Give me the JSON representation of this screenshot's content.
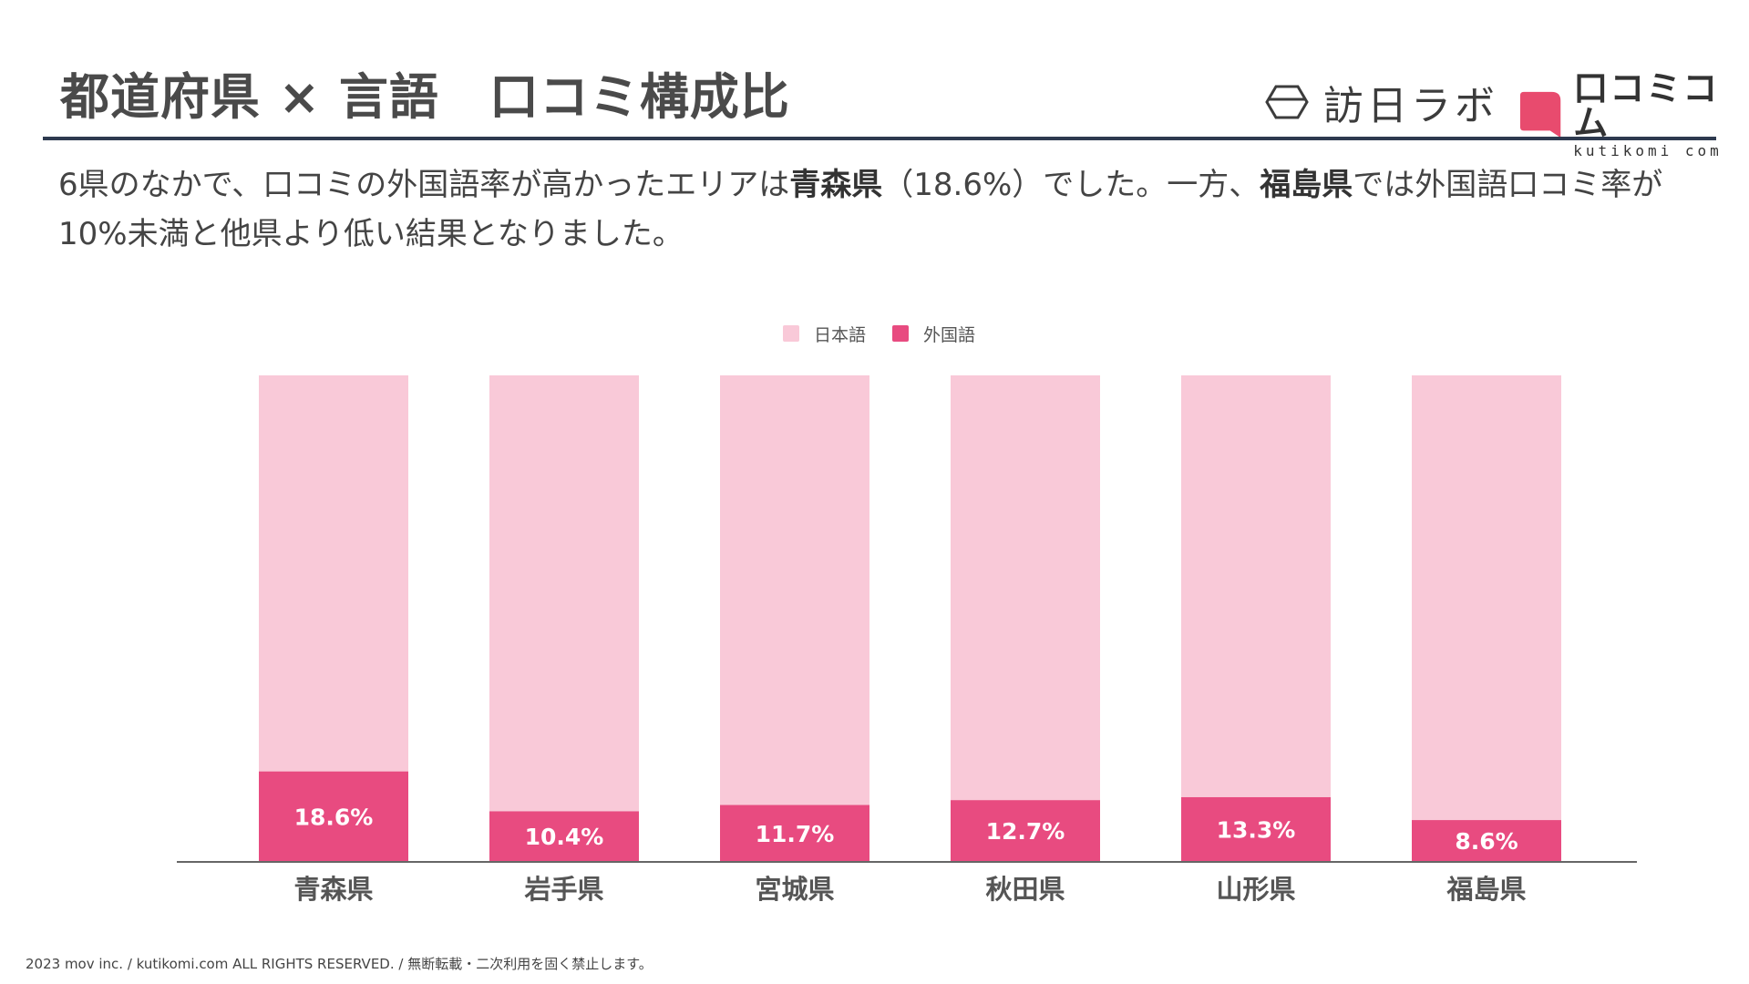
{
  "header": {
    "title": "都道府県 × 言語　口コミ構成比",
    "logo_houjin": "訪日ラボ",
    "logo_kuchikomi": "口コミコム",
    "logo_kuchikomi_sub": "kutikomi com"
  },
  "description": {
    "p1": "6県のなかで、口コミの外国語率が高かったエリアは",
    "b1": "青森県",
    "p2": "（18.6%）でした。一方、",
    "b2": "福島県",
    "p3": "では外国語口コミ率が10%未満と他県より低い結果となりました。"
  },
  "colors": {
    "japanese": "#f9c9d8",
    "foreign": "#e84b80",
    "axis": "#666666"
  },
  "chart_data": {
    "type": "bar",
    "stacked": true,
    "title": "",
    "categories": [
      "青森県",
      "岩手県",
      "宮城県",
      "秋田県",
      "山形県",
      "福島県"
    ],
    "series": [
      {
        "name": "日本語",
        "values": [
          81.4,
          89.6,
          88.3,
          87.3,
          86.7,
          91.4
        ]
      },
      {
        "name": "外国語",
        "values": [
          18.6,
          10.4,
          11.7,
          12.7,
          13.3,
          8.6
        ]
      }
    ],
    "data_labels": [
      "18.6%",
      "10.4%",
      "11.7%",
      "12.7%",
      "13.3%",
      "8.6%"
    ],
    "ylim": [
      0,
      100
    ],
    "legend": "top-center",
    "grid": false
  },
  "footer": {
    "copyright": "2023 mov inc. / kutikomi.com ALL RIGHTS RESERVED. / 無断転載・二次利用を固く禁止します。"
  }
}
